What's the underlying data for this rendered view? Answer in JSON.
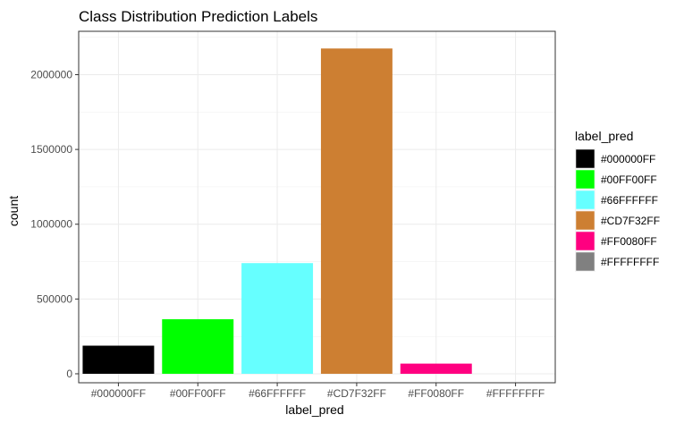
{
  "chart_data": {
    "type": "bar",
    "title": "Class Distribution Prediction Labels",
    "xlabel": "label_pred",
    "ylabel": "count",
    "categories": [
      "#000000FF",
      "#00FF00FF",
      "#66FFFFFF",
      "#CD7F32FF",
      "#FF0080FF",
      "#FFFFFFFF"
    ],
    "values": [
      188000,
      365000,
      740000,
      2175000,
      68000,
      0
    ],
    "colors": [
      "#000000",
      "#00FF00",
      "#66FFFF",
      "#CD7F32",
      "#FF0080",
      "#FFFFFF"
    ],
    "ylim": [
      -60000,
      2290000
    ],
    "yticks": [
      0,
      500000,
      1000000,
      1500000,
      2000000
    ],
    "ytick_labels": [
      "0",
      "500000",
      "1000000",
      "1500000",
      "2000000"
    ],
    "grid": true,
    "legend": {
      "title": "label_pred",
      "placement": "right",
      "entries": [
        {
          "label": "#000000FF",
          "color": "#000000"
        },
        {
          "label": "#00FF00FF",
          "color": "#00FF00"
        },
        {
          "label": "#66FFFFFF",
          "color": "#66FFFF"
        },
        {
          "label": "#CD7F32FF",
          "color": "#CD7F32"
        },
        {
          "label": "#FF0080FF",
          "color": "#FF0080"
        },
        {
          "label": "#FFFFFFFF",
          "color": "#808080"
        }
      ]
    }
  }
}
